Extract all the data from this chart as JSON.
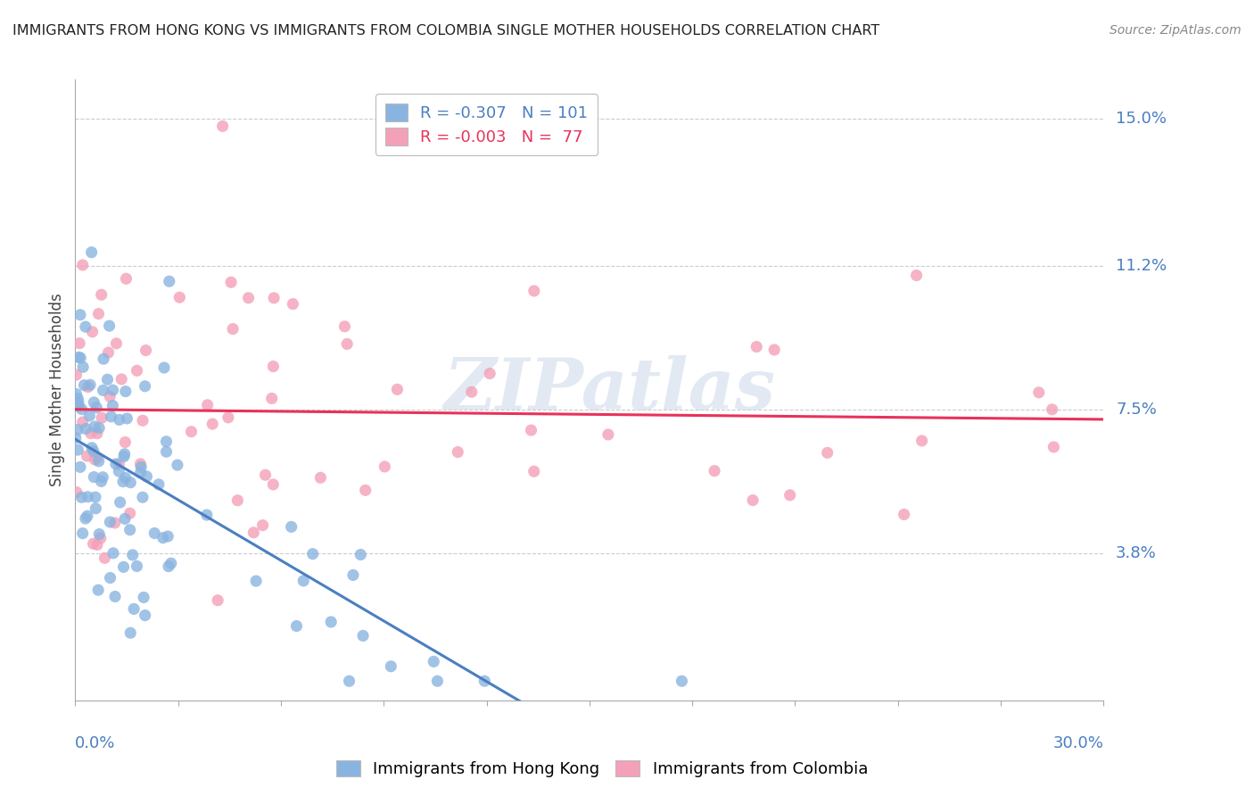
{
  "title": "IMMIGRANTS FROM HONG KONG VS IMMIGRANTS FROM COLOMBIA SINGLE MOTHER HOUSEHOLDS CORRELATION CHART",
  "source": "Source: ZipAtlas.com",
  "ylabel": "Single Mother Households",
  "ytick_labels": [
    "15.0%",
    "11.2%",
    "7.5%",
    "3.8%"
  ],
  "ytick_values": [
    0.15,
    0.112,
    0.075,
    0.038
  ],
  "xlim": [
    0.0,
    0.3
  ],
  "ylim": [
    0.0,
    0.16
  ],
  "hk_color": "#8ab4e0",
  "col_color": "#f4a0b8",
  "hk_line_color": "#4a7fc1",
  "col_line_color": "#e8325a",
  "background_color": "#ffffff",
  "grid_color": "#cccccc",
  "watermark": "ZIPatlas",
  "legend_hk_r": "-0.307",
  "legend_hk_n": "101",
  "legend_col_r": "-0.003",
  "legend_col_n": "77",
  "title_color": "#222222",
  "source_color": "#888888",
  "axis_label_color": "#4a7fc1",
  "ylabel_color": "#444444"
}
